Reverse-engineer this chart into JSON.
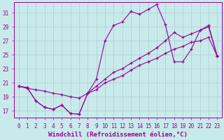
{
  "xlabel": "Windchill (Refroidissement éolien,°C)",
  "bg_color": "#c8eaea",
  "grid_color": "#aacccc",
  "line_color": "#990099",
  "xlim": [
    -0.5,
    23.5
  ],
  "ylim": [
    16.0,
    32.5
  ],
  "xticks": [
    0,
    1,
    2,
    3,
    4,
    5,
    6,
    7,
    8,
    9,
    10,
    11,
    12,
    13,
    14,
    15,
    16,
    17,
    18,
    19,
    20,
    21,
    22,
    23
  ],
  "yticks": [
    17,
    19,
    21,
    23,
    25,
    27,
    29,
    31
  ],
  "series1_x": [
    0,
    1,
    2,
    3,
    4,
    5,
    6,
    7,
    8,
    9,
    10,
    11,
    12,
    13,
    14,
    15,
    16,
    17,
    18,
    19,
    20,
    21,
    22,
    23
  ],
  "series1_y": [
    20.5,
    20.3,
    18.4,
    17.5,
    17.2,
    17.8,
    16.6,
    16.5,
    19.5,
    21.5,
    27.0,
    29.2,
    29.7,
    31.2,
    30.8,
    31.5,
    32.2,
    29.3,
    24.0,
    24.0,
    25.8,
    28.5,
    29.0,
    24.8
  ],
  "series2_x": [
    0,
    1,
    2,
    3,
    4,
    5,
    6,
    7,
    8,
    9,
    10,
    11,
    12,
    13,
    14,
    15,
    16,
    17,
    18,
    19,
    20,
    21,
    22,
    23
  ],
  "series2_y": [
    20.5,
    20.2,
    20.0,
    19.8,
    19.5,
    19.3,
    19.0,
    18.8,
    19.5,
    20.5,
    21.5,
    22.5,
    23.0,
    23.8,
    24.5,
    25.2,
    26.0,
    27.0,
    28.2,
    27.5,
    28.0,
    28.5,
    29.2,
    24.8
  ],
  "series3_x": [
    0,
    1,
    2,
    3,
    4,
    5,
    6,
    7,
    8,
    9,
    10,
    11,
    12,
    13,
    14,
    15,
    16,
    17,
    18,
    19,
    20,
    21,
    22,
    23
  ],
  "series3_y": [
    20.5,
    20.3,
    18.4,
    17.5,
    17.2,
    17.8,
    16.6,
    16.5,
    19.5,
    20.0,
    21.0,
    21.5,
    22.0,
    22.8,
    23.5,
    24.0,
    24.5,
    25.2,
    25.8,
    26.2,
    26.8,
    27.0,
    27.5,
    24.8
  ],
  "font_size_tick": 5.5,
  "font_size_label": 6.5
}
